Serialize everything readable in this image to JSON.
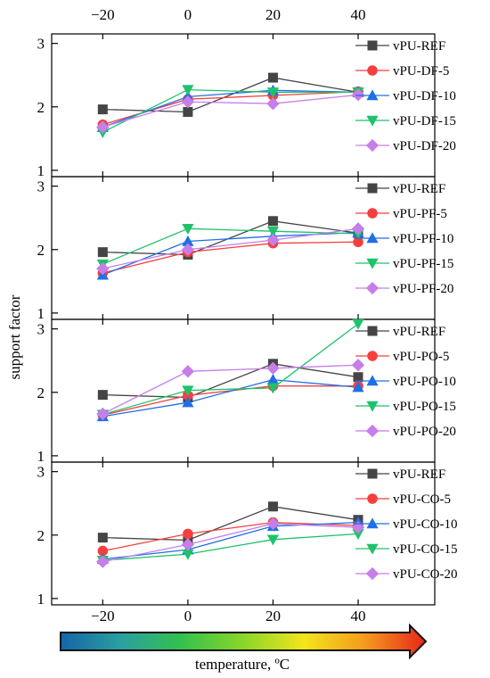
{
  "figure": {
    "ylabel": "support factor",
    "xlabel": "temperature, ºC",
    "temperature_gradient": [
      "#1565a8",
      "#2aa0a0",
      "#33c24a",
      "#8ad62a",
      "#f2e51c",
      "#f59a1c",
      "#e8261a"
    ]
  },
  "chart_data": [
    {
      "type": "line",
      "x": [
        -20,
        0,
        20,
        40
      ],
      "xlim": [
        -32,
        58
      ],
      "ylim": [
        0.9,
        3.15
      ],
      "xticks": [
        -20,
        0,
        20,
        40
      ],
      "yticks": [
        1,
        2,
        3
      ],
      "legend_position": "top-right",
      "series": [
        {
          "name": "vPU-REF",
          "marker": "square",
          "color": "#454545",
          "values": [
            1.96,
            1.92,
            2.46,
            2.23
          ]
        },
        {
          "name": "vPU-DF-5",
          "marker": "circle",
          "color": "#f53f3f",
          "values": [
            1.72,
            2.12,
            2.18,
            2.24
          ]
        },
        {
          "name": "vPU-DF-10",
          "marker": "triangle-up",
          "color": "#1f6fe6",
          "values": [
            1.68,
            2.16,
            2.26,
            2.23
          ]
        },
        {
          "name": "vPU-DF-15",
          "marker": "triangle-down",
          "color": "#1fc26b",
          "values": [
            1.6,
            2.27,
            2.23,
            2.23
          ]
        },
        {
          "name": "vPU-DF-20",
          "marker": "diamond",
          "color": "#c77ee8",
          "values": [
            1.68,
            2.08,
            2.05,
            2.19
          ]
        }
      ]
    },
    {
      "type": "line",
      "x": [
        -20,
        0,
        20,
        40
      ],
      "xlim": [
        -32,
        58
      ],
      "ylim": [
        0.9,
        3.15
      ],
      "xticks": [
        -20,
        0,
        20,
        40
      ],
      "yticks": [
        1,
        2,
        3
      ],
      "legend_position": "top-right",
      "series": [
        {
          "name": "vPU-REF",
          "marker": "square",
          "color": "#454545",
          "values": [
            1.96,
            1.92,
            2.45,
            2.26
          ]
        },
        {
          "name": "vPU-PF-5",
          "marker": "circle",
          "color": "#f53f3f",
          "values": [
            1.63,
            1.96,
            2.1,
            2.12
          ]
        },
        {
          "name": "vPU-PF-10",
          "marker": "triangle-up",
          "color": "#1f6fe6",
          "values": [
            1.6,
            2.13,
            2.21,
            2.27
          ]
        },
        {
          "name": "vPU-PF-15",
          "marker": "triangle-down",
          "color": "#1fc26b",
          "values": [
            1.77,
            2.33,
            2.29,
            2.25
          ]
        },
        {
          "name": "vPU-PF-20",
          "marker": "diamond",
          "color": "#c77ee8",
          "values": [
            1.7,
            2.0,
            2.15,
            2.33
          ]
        }
      ]
    },
    {
      "type": "line",
      "x": [
        -20,
        0,
        20,
        40
      ],
      "xlim": [
        -32,
        58
      ],
      "ylim": [
        0.9,
        3.15
      ],
      "xticks": [
        -20,
        0,
        20,
        40
      ],
      "yticks": [
        1,
        2,
        3
      ],
      "legend_position": "top-right",
      "series": [
        {
          "name": "vPU-REF",
          "marker": "square",
          "color": "#454545",
          "values": [
            1.96,
            1.92,
            2.45,
            2.24
          ]
        },
        {
          "name": "vPU-PO-5",
          "marker": "circle",
          "color": "#f53f3f",
          "values": [
            1.64,
            1.95,
            2.1,
            2.1
          ]
        },
        {
          "name": "vPU-PO-10",
          "marker": "triangle-up",
          "color": "#1f6fe6",
          "values": [
            1.62,
            1.84,
            2.2,
            2.08
          ]
        },
        {
          "name": "vPU-PO-15",
          "marker": "triangle-down",
          "color": "#1fc26b",
          "values": [
            1.65,
            2.03,
            2.07,
            3.08
          ]
        },
        {
          "name": "vPU-PO-20",
          "marker": "diamond",
          "color": "#c77ee8",
          "values": [
            1.66,
            2.33,
            2.38,
            2.43
          ]
        }
      ]
    },
    {
      "type": "line",
      "x": [
        -20,
        0,
        20,
        40
      ],
      "xlim": [
        -32,
        58
      ],
      "ylim": [
        0.9,
        3.15
      ],
      "xticks": [
        -20,
        0,
        20,
        40
      ],
      "yticks": [
        1,
        2,
        3
      ],
      "legend_position": "top-right",
      "series": [
        {
          "name": "vPU-REF",
          "marker": "square",
          "color": "#454545",
          "values": [
            1.96,
            1.92,
            2.45,
            2.24
          ]
        },
        {
          "name": "vPU-CO-5",
          "marker": "circle",
          "color": "#f53f3f",
          "values": [
            1.75,
            2.02,
            2.2,
            2.15
          ]
        },
        {
          "name": "vPU-CO-10",
          "marker": "triangle-up",
          "color": "#1f6fe6",
          "values": [
            1.62,
            1.77,
            2.14,
            2.2
          ]
        },
        {
          "name": "vPU-CO-15",
          "marker": "triangle-down",
          "color": "#1fc26b",
          "values": [
            1.6,
            1.7,
            1.93,
            2.02
          ]
        },
        {
          "name": "vPU-CO-20",
          "marker": "diamond",
          "color": "#c77ee8",
          "values": [
            1.58,
            1.85,
            2.18,
            2.12
          ]
        }
      ]
    }
  ]
}
